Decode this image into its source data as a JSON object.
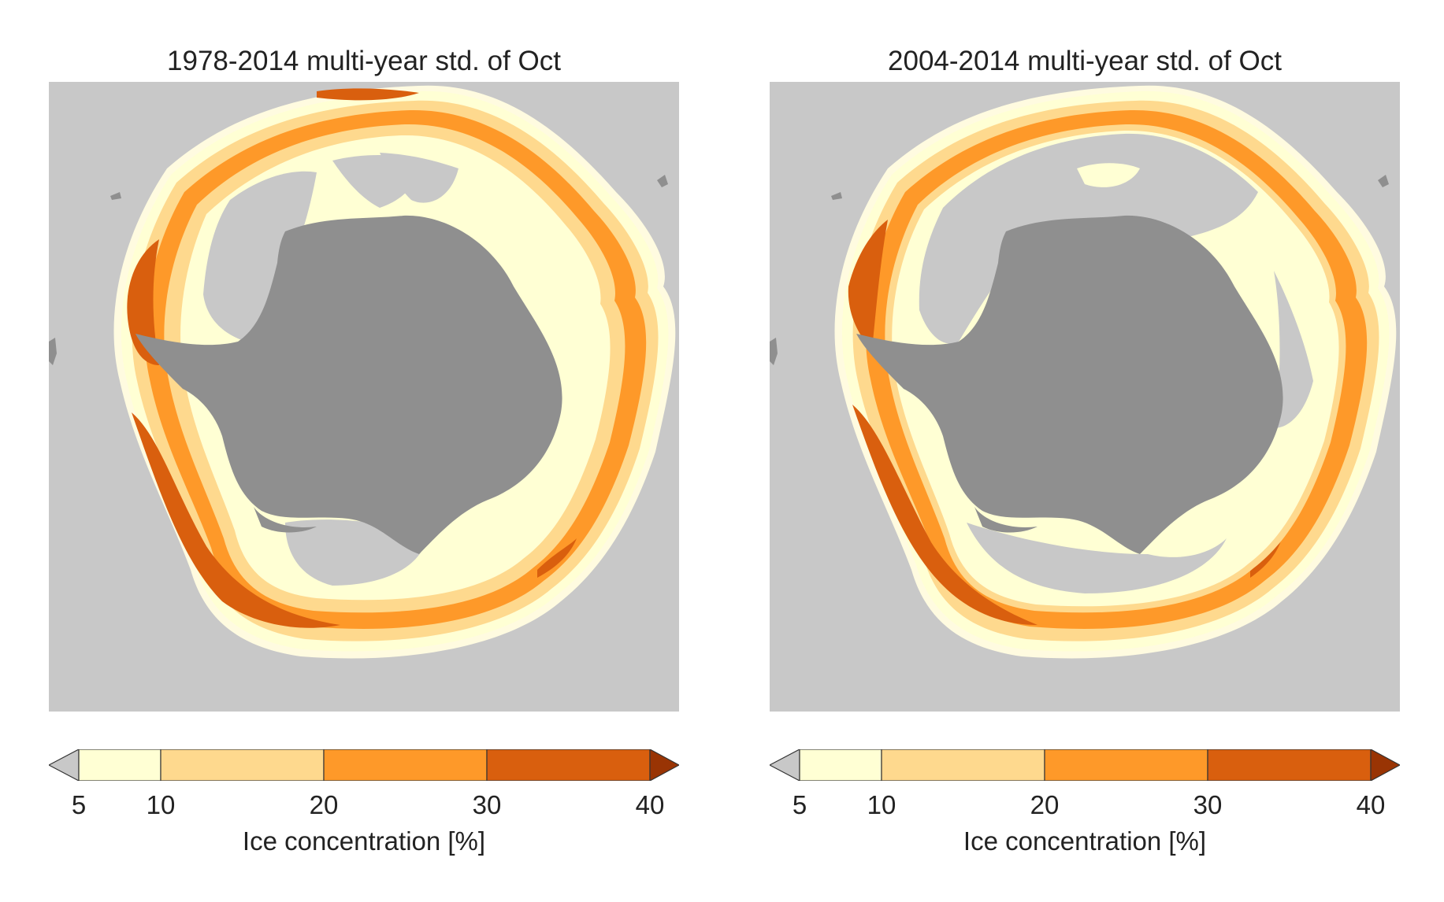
{
  "panels": [
    {
      "title": "1978-2014 multi-year std. of Oct",
      "colorbar": {
        "ticks": [
          "5",
          "10",
          "20",
          "30",
          "40"
        ],
        "label": "Ice concentration [%]"
      }
    },
    {
      "title": "2004-2014 multi-year std. of Oct",
      "colorbar": {
        "ticks": [
          "5",
          "10",
          "20",
          "30",
          "40"
        ],
        "label": "Ice concentration [%]"
      }
    }
  ],
  "legend_bins": [
    {
      "range": "<5",
      "color": "#c8c8c8"
    },
    {
      "range": "5-10",
      "color": "#ffffd4"
    },
    {
      "range": "10-20",
      "color": "#fed98e"
    },
    {
      "range": "20-30",
      "color": "#fe9929"
    },
    {
      "range": "30-40",
      "color": "#d95f0e"
    },
    {
      "range": ">40",
      "color": "#993404"
    }
  ],
  "colors": {
    "ocean_background": "#c8c8c8",
    "land": "#8f8f8f",
    "ring_outline": "#fffbe0"
  }
}
